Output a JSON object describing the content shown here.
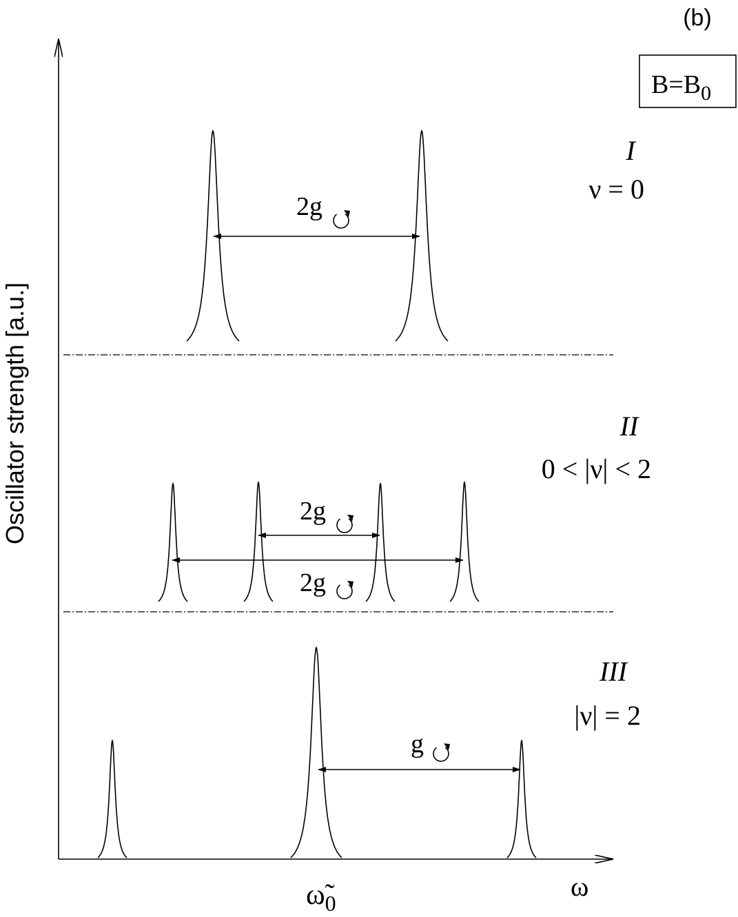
{
  "label": "(b)",
  "field_box": {
    "text": "B=B",
    "subscript": "0"
  },
  "y_axis_label": "Oscillator strength [a.u.]",
  "x_axis": {
    "center_label": {
      "text": "ω̃",
      "subscript": "0"
    },
    "end_label": "ω"
  },
  "panels": [
    {
      "numeral": "I",
      "condition": "ν = 0",
      "splittings": [
        "2g"
      ]
    },
    {
      "numeral": "II",
      "condition": "0 < |ν| < 2",
      "splittings": [
        "2g",
        "2g"
      ]
    },
    {
      "numeral": "III",
      "condition": "|ν| = 2",
      "splittings": [
        "g"
      ]
    }
  ]
}
